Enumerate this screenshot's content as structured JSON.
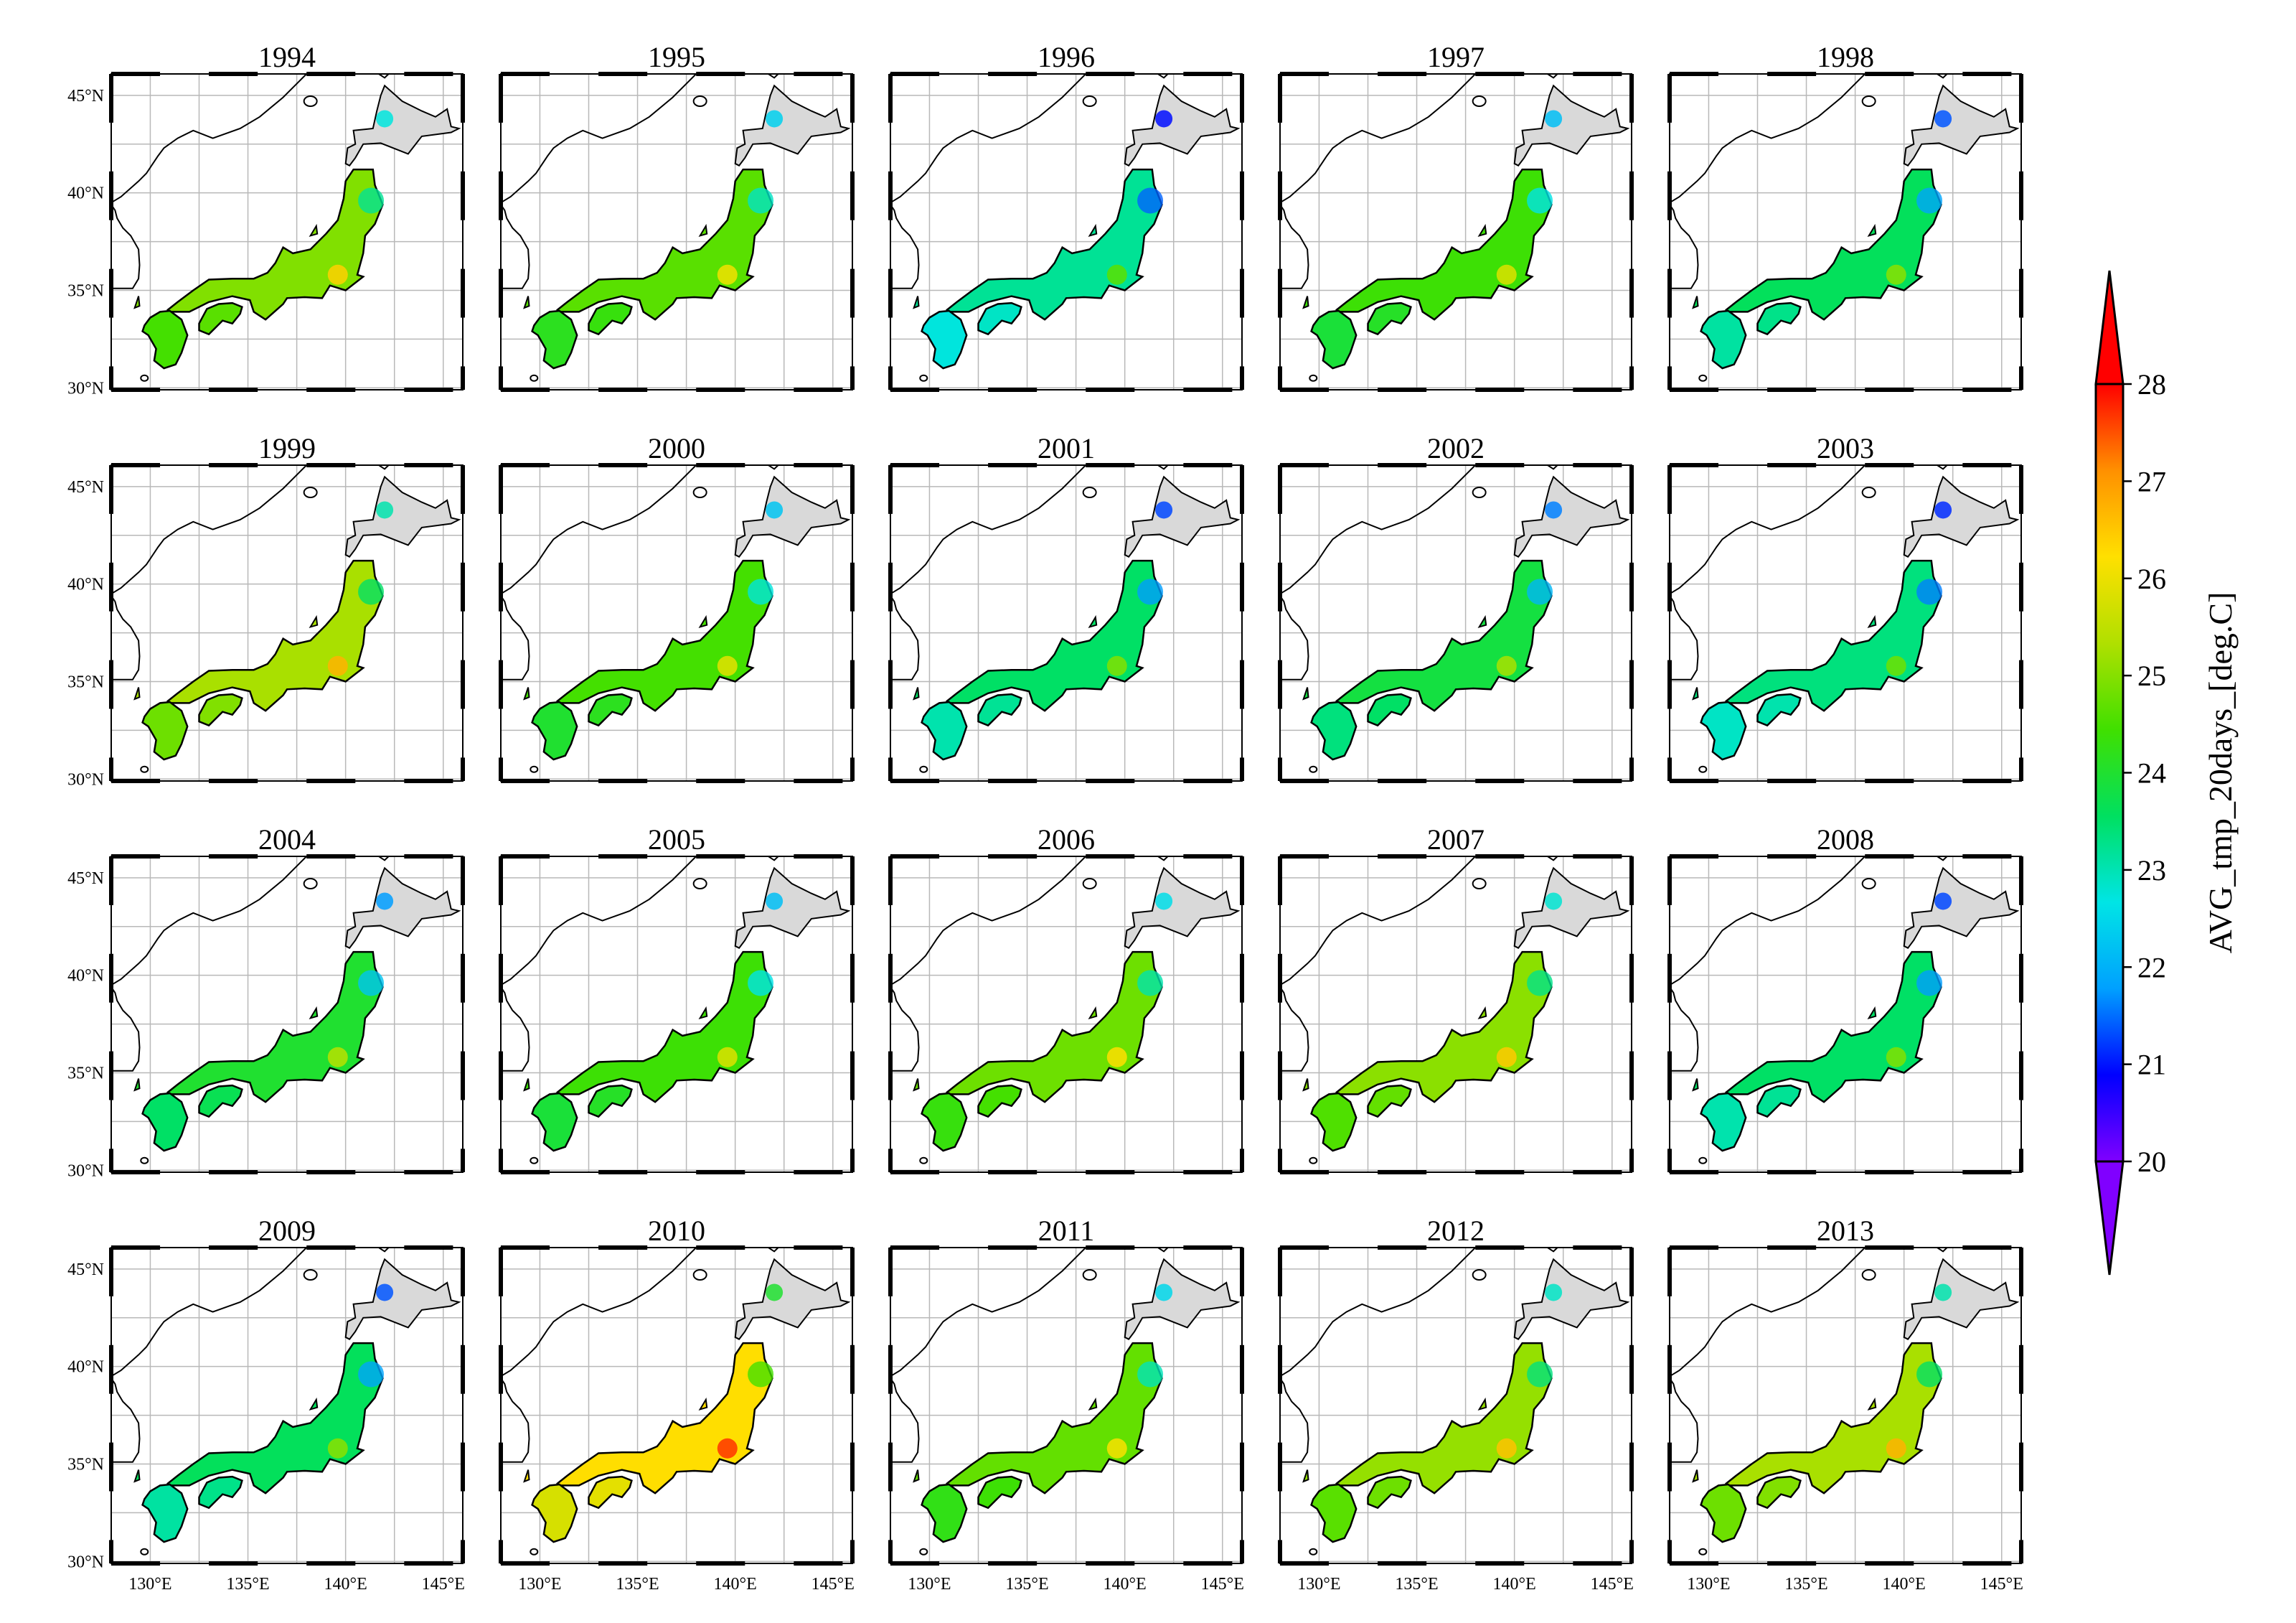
{
  "figure": {
    "years": [
      "1994",
      "1995",
      "1996",
      "1997",
      "1998",
      "1999",
      "2000",
      "2001",
      "2002",
      "2003",
      "2004",
      "2005",
      "2006",
      "2007",
      "2008",
      "2009",
      "2010",
      "2011",
      "2012",
      "2013"
    ],
    "lat_labels": [
      "45°N",
      "40°N",
      "35°N",
      "30°N"
    ],
    "lon_labels": [
      "130°E",
      "135°E",
      "140°E",
      "145°E"
    ],
    "lat_range": [
      29.9,
      46.1
    ],
    "lon_range": [
      128,
      146
    ],
    "land_fill": "#d9d9d9",
    "panel_value_tones": {
      "1994": 0.62,
      "1995": 0.58,
      "1996": 0.4,
      "1997": 0.55,
      "1998": 0.45,
      "1999": 0.66,
      "2000": 0.56,
      "2001": 0.44,
      "2002": 0.48,
      "2003": 0.42,
      "2004": 0.5,
      "2005": 0.55,
      "2006": 0.6,
      "2007": 0.63,
      "2008": 0.44,
      "2009": 0.45,
      "2010": 0.78,
      "2011": 0.59,
      "2012": 0.64,
      "2013": 0.66
    }
  },
  "colorbar": {
    "label": "AVG_tmp_20days_[deg.C]",
    "min": 20,
    "max": 28,
    "ticks": [
      "20",
      "21",
      "22",
      "23",
      "24",
      "25",
      "26",
      "27",
      "28"
    ],
    "colors": [
      "#8000ff",
      "#0000ff",
      "#00a0ff",
      "#00e5e5",
      "#00e060",
      "#40e000",
      "#b0e000",
      "#ffe000",
      "#ff9000",
      "#ff0000"
    ]
  }
}
